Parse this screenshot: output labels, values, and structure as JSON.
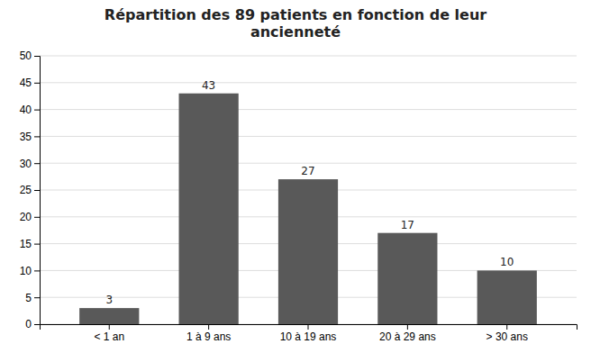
{
  "chart_data": {
    "type": "bar",
    "title": "Répartition des 89 patients en fonction de leur\nancienneté",
    "categories": [
      "< 1 an",
      "1 à 9 ans",
      "10 à 19 ans",
      "20 à 29 ans",
      "> 30 ans"
    ],
    "values": [
      3,
      43,
      27,
      17,
      10
    ],
    "color": "#595959",
    "ylim": [
      0,
      50
    ],
    "yticks": [
      0,
      5,
      10,
      15,
      20,
      25,
      30,
      35,
      40,
      45,
      50
    ],
    "grid": true,
    "data_labels": true
  }
}
